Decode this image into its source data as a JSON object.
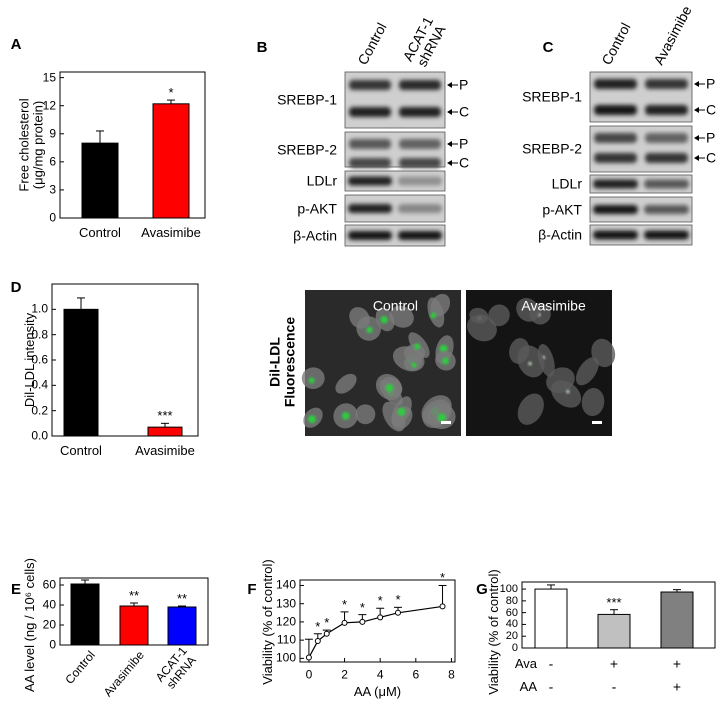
{
  "chart_data": [
    {
      "type": "bar",
      "panel": "A",
      "ylabel": "Free cholesterol\n(μg/mg protein)",
      "categories": [
        "Control",
        "Avasimibe"
      ],
      "values": [
        8.0,
        12.2
      ],
      "errors": [
        1.3,
        0.4
      ],
      "colors": [
        "#000000",
        "#ff0000"
      ],
      "significance": [
        null,
        "*"
      ],
      "ylim": [
        0,
        15.6
      ],
      "yticks": [
        0,
        3,
        6,
        9,
        12,
        15
      ]
    },
    {
      "type": "bar",
      "panel": "D",
      "ylabel": "Dil-LDL intensity",
      "categories": [
        "Control",
        "Avasimibe"
      ],
      "values": [
        1.0,
        0.07
      ],
      "errors": [
        0.09,
        0.03
      ],
      "colors": [
        "#000000",
        "#ff0000"
      ],
      "significance": [
        null,
        "***"
      ],
      "ylim": [
        0,
        1.2
      ],
      "yticks": [
        {
          "value": 0,
          "label": "0.0"
        },
        0.2,
        0.4,
        0.6,
        0.8,
        {
          "value": 1,
          "label": "1.0"
        }
      ]
    },
    {
      "type": "bar",
      "panel": "E",
      "ylabel": "AA level (ng / 10⁶ cells)",
      "categories": [
        "Control",
        "Avasimibe",
        "ACAT-1\nshRNA"
      ],
      "values": [
        61,
        39,
        38
      ],
      "errors": [
        4,
        3,
        1
      ],
      "colors": [
        "#000000",
        "#ff0000",
        "#0000ff"
      ],
      "significance": [
        null,
        "**",
        "**"
      ],
      "ylim": [
        0,
        67
      ],
      "yticks": [
        0,
        20,
        40,
        60
      ]
    },
    {
      "type": "line",
      "panel": "F",
      "ylabel": "Viability (% of control)",
      "xlabel": "AA (μM)",
      "x": [
        0,
        0.5,
        1,
        2,
        3,
        4,
        5,
        7.5
      ],
      "values": [
        100.5,
        109.5,
        113.5,
        119.5,
        120,
        122.5,
        125,
        128.5
      ],
      "errors": [
        10,
        4,
        2,
        6,
        4,
        5,
        3,
        11.5
      ],
      "color": "#000000",
      "significance": [
        null,
        "*",
        "*",
        "*",
        "*",
        "*",
        "*",
        "*"
      ],
      "xlim": [
        -0.5,
        8.2
      ],
      "xticks": [
        0,
        2,
        4,
        6,
        8
      ],
      "ylim": [
        98,
        143
      ],
      "yticks": [
        100,
        110,
        120,
        130,
        140
      ]
    },
    {
      "type": "bar",
      "panel": "G",
      "ylabel": "Viability (% of control)",
      "categories": [
        null,
        null,
        null
      ],
      "values": [
        100,
        57,
        95
      ],
      "errors": [
        7,
        8,
        4
      ],
      "colors": [
        "#ffffff",
        "#c0c0c0",
        "#808080"
      ],
      "significance": [
        null,
        "***",
        null
      ],
      "ylim": [
        0,
        112
      ],
      "yticks": [
        0,
        20,
        40,
        60,
        80,
        100
      ],
      "conditions": [
        {
          "name": "Ava",
          "signs": [
            "-",
            "+",
            "+"
          ]
        },
        {
          "name": "AA",
          "signs": [
            "-",
            "-",
            "+"
          ]
        }
      ]
    }
  ],
  "blots": [
    {
      "panel": "B",
      "lanes": [
        "Control",
        "ACAT-1\nshRNA"
      ],
      "rows": [
        {
          "name": "SREBP-1",
          "forms": [
            "P",
            "C"
          ]
        },
        {
          "name": "SREBP-2",
          "forms": [
            "P",
            "C"
          ]
        },
        {
          "name": "LDLr"
        },
        {
          "name": "p-AKT"
        },
        {
          "name": "β-Actin"
        }
      ]
    },
    {
      "panel": "C",
      "lanes": [
        "Control",
        "Avasimibe"
      ],
      "rows": [
        {
          "name": "SREBP-1",
          "forms": [
            "P",
            "C"
          ]
        },
        {
          "name": "SREBP-2",
          "forms": [
            "P",
            "C"
          ]
        },
        {
          "name": "LDLr"
        },
        {
          "name": "p-AKT"
        },
        {
          "name": "β-Actin"
        }
      ]
    }
  ],
  "micrographs": {
    "side_label": "Dil-LDL\nFluorescence",
    "labels": [
      "Control",
      "Avasimibe"
    ]
  }
}
